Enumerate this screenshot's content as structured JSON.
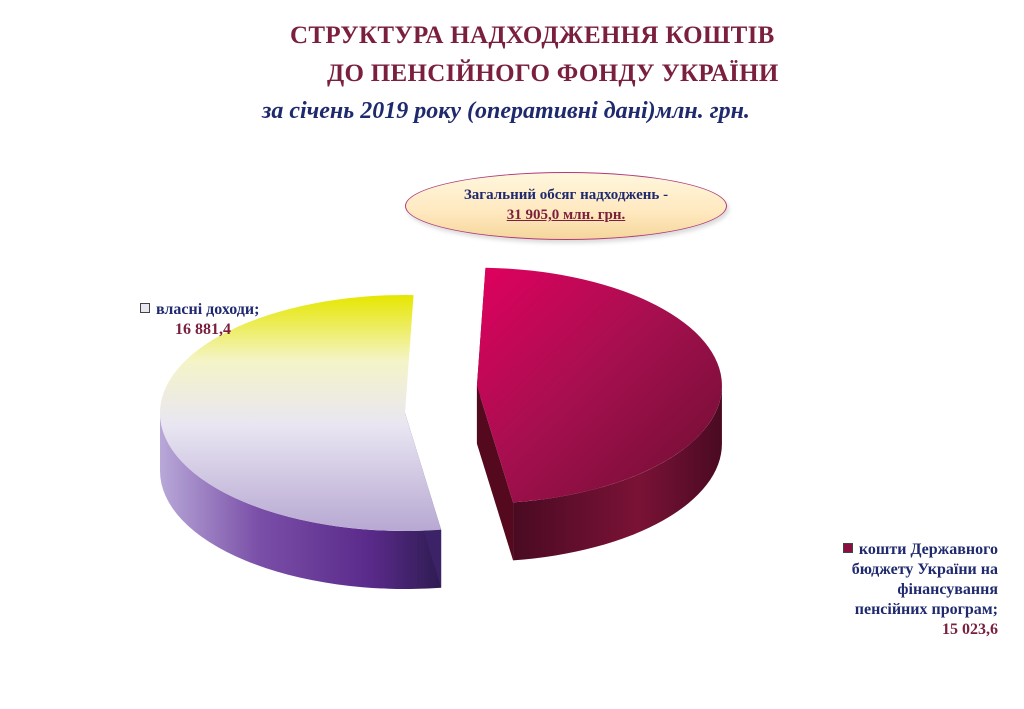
{
  "title": {
    "line1": "СТРУКТУРА  НАДХОДЖЕННЯ КОШТІВ",
    "line2": "ДО ПЕНСІЙНОГО ФОНДУ УКРАЇНИ",
    "subtitle": "за січень 2019 року (оперативні дані)млн. грн."
  },
  "total": {
    "label": "Загальний обсяг надходжень -",
    "value": "31 905,0 млн. грн."
  },
  "chart_data": {
    "type": "pie",
    "title": "СТРУКТУРА НАДХОДЖЕННЯ КОШТІВ ДО ПЕНСІЙНОГО ФОНДУ УКРАЇНИ",
    "unit": "млн. грн.",
    "categories": [
      "власні доходи",
      "кошти Державного бюджету України на фінансування пенсійних програм"
    ],
    "values": [
      16881.4,
      15023.6
    ],
    "style": "3d-exploded"
  },
  "legend": {
    "own": {
      "label": "власні доходи;",
      "value": "16 881,4",
      "color": "#e8e8f0"
    },
    "budget": {
      "line1": "кошти Державного",
      "line2": "бюджету України на",
      "line3": "фінансування",
      "line4": "пенсійних програм;",
      "value": "15 023,6",
      "color": "#8a1040"
    }
  },
  "colors": {
    "title": "#7a1f3d",
    "subtitle": "#1f2a6e",
    "budget_slice": "#a8104f",
    "own_slice_top": "#e8e800",
    "own_slice_side": "#4a2a7a"
  }
}
